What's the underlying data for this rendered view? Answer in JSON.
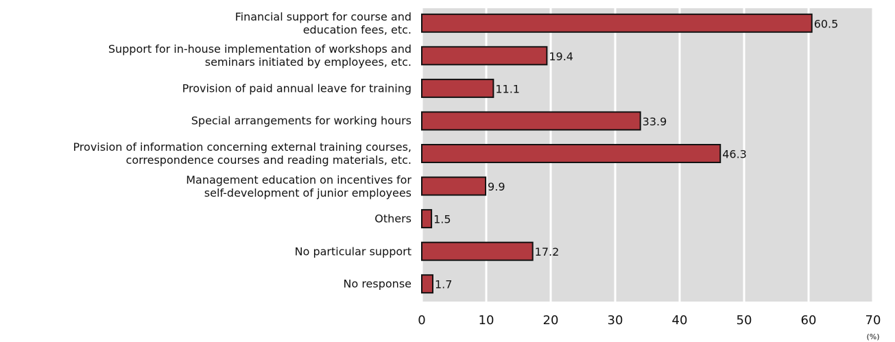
{
  "chart_data": {
    "type": "bar",
    "orientation": "horizontal",
    "categories": [
      "Financial support for course and\neducation fees, etc.",
      "Support for in-house implementation of workshops and\nseminars initiated by employees, etc.",
      "Provision of paid annual leave for training",
      "Special arrangements for working hours",
      "Provision of information concerning external training courses,\ncorrespondence courses and reading materials, etc.",
      "Management education on incentives for\nself-development of junior employees",
      "Others",
      "No particular support",
      "No response"
    ],
    "values": [
      60.5,
      19.4,
      11.1,
      33.9,
      46.3,
      9.9,
      1.5,
      17.2,
      1.7
    ],
    "color": "#b23a40",
    "xlim": [
      0,
      70
    ],
    "xticks": [
      0,
      10,
      20,
      30,
      40,
      50,
      60,
      70
    ],
    "x_axis_label": "(%)",
    "grid": true
  }
}
